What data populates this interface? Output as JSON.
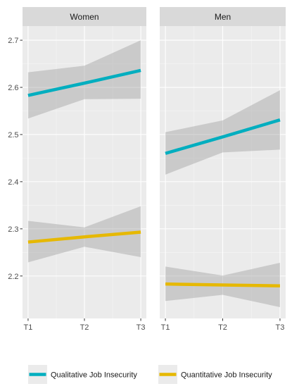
{
  "chart_data": {
    "type": "line",
    "facets": [
      "Women",
      "Men"
    ],
    "x": [
      "T1",
      "T2",
      "T3"
    ],
    "ylim": [
      2.11,
      2.73
    ],
    "yticks": [
      2.2,
      2.3,
      2.4,
      2.5,
      2.6,
      2.7
    ],
    "ytick_labels": [
      "2.2",
      "2.3",
      "2.4",
      "2.5",
      "2.6",
      "2.7"
    ],
    "grid": true,
    "legend_position": "bottom",
    "series": [
      {
        "name": "Qualitative Job Insecurity",
        "color": "#00aebf",
        "panels": {
          "Women": {
            "values": [
              2.583,
              2.609,
              2.636
            ],
            "ci_lower": [
              2.534,
              2.575,
              2.576
            ],
            "ci_upper": [
              2.632,
              2.646,
              2.7
            ]
          },
          "Men": {
            "values": [
              2.46,
              2.495,
              2.531
            ],
            "ci_lower": [
              2.415,
              2.462,
              2.468
            ],
            "ci_upper": [
              2.505,
              2.53,
              2.594
            ]
          }
        }
      },
      {
        "name": "Quantitative Job Insecurity",
        "color": "#e6b800",
        "panels": {
          "Women": {
            "values": [
              2.272,
              2.283,
              2.293
            ],
            "ci_lower": [
              2.229,
              2.262,
              2.24
            ],
            "ci_upper": [
              2.317,
              2.303,
              2.348
            ]
          },
          "Men": {
            "values": [
              2.183,
              2.181,
              2.179
            ],
            "ci_lower": [
              2.147,
              2.16,
              2.134
            ],
            "ci_upper": [
              2.22,
              2.201,
              2.228
            ]
          }
        }
      }
    ]
  }
}
